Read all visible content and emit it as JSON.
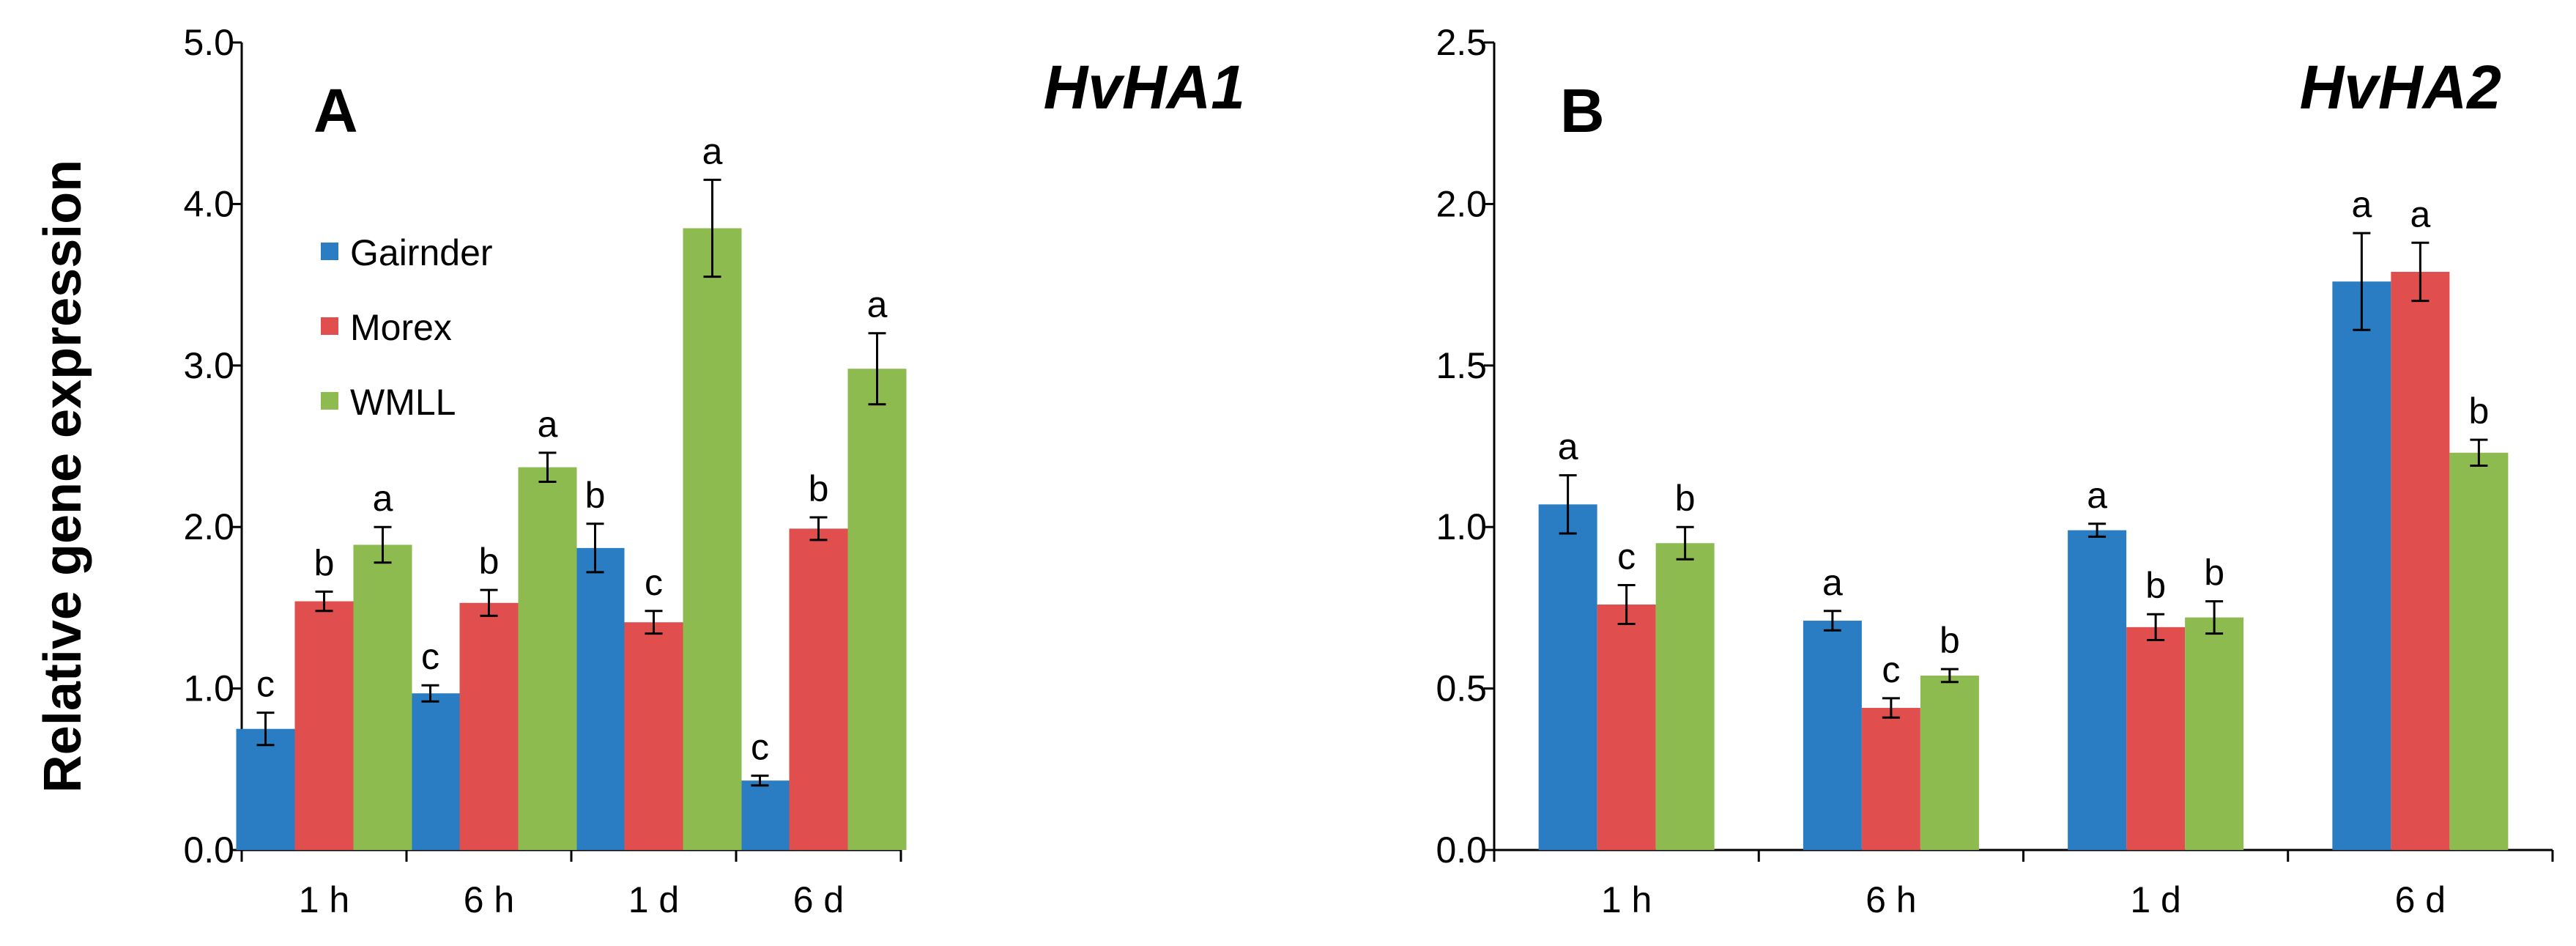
{
  "y_axis_label": "Relative gene expression",
  "legend": {
    "items": [
      {
        "name": "Gairnder",
        "color": "#2a7dc2"
      },
      {
        "name": "Morex",
        "color": "#e04e4e"
      },
      {
        "name": "WMLL",
        "color": "#8dbb4f"
      }
    ]
  },
  "chart_data": [
    {
      "type": "bar",
      "panel_label": "A",
      "title": "HvHA1",
      "categories": [
        "1 h",
        "6 h",
        "1 d",
        "6 d"
      ],
      "ylim": [
        0,
        5
      ],
      "yticks": [
        0,
        1,
        2,
        3,
        4,
        5
      ],
      "ytick_labels": [
        "0.0",
        "1.0",
        "2.0",
        "3.0",
        "4.0",
        "5.0"
      ],
      "ylabel": "Relative gene expression",
      "series": [
        {
          "name": "Gairnder",
          "color": "#2a7dc2",
          "values": [
            0.75,
            0.97,
            1.87,
            0.43
          ],
          "errors": [
            0.1,
            0.05,
            0.15,
            0.03
          ],
          "letters": [
            "c",
            "c",
            "b",
            "c"
          ]
        },
        {
          "name": "Morex",
          "color": "#e04e4e",
          "values": [
            1.54,
            1.53,
            1.41,
            1.99
          ],
          "errors": [
            0.06,
            0.08,
            0.07,
            0.07
          ],
          "letters": [
            "b",
            "b",
            "c",
            "b"
          ]
        },
        {
          "name": "WMLL",
          "color": "#8dbb4f",
          "values": [
            1.89,
            2.37,
            3.85,
            2.98
          ],
          "errors": [
            0.11,
            0.09,
            0.3,
            0.22
          ],
          "letters": [
            "a",
            "a",
            "a",
            "a"
          ]
        }
      ]
    },
    {
      "type": "bar",
      "panel_label": "B",
      "title": "HvHA2",
      "categories": [
        "1 h",
        "6 h",
        "1 d",
        "6 d"
      ],
      "ylim": [
        0,
        2.5
      ],
      "yticks": [
        0,
        0.5,
        1,
        1.5,
        2,
        2.5
      ],
      "ytick_labels": [
        "0.0",
        "0.5",
        "1.0",
        "1.5",
        "2.0",
        "2.5"
      ],
      "ylabel": "",
      "series": [
        {
          "name": "Gairnder",
          "color": "#2a7dc2",
          "values": [
            1.07,
            0.71,
            0.99,
            1.76
          ],
          "errors": [
            0.09,
            0.03,
            0.02,
            0.15
          ],
          "letters": [
            "a",
            "a",
            "a",
            "a"
          ]
        },
        {
          "name": "Morex",
          "color": "#e04e4e",
          "values": [
            0.76,
            0.44,
            0.69,
            1.79
          ],
          "errors": [
            0.06,
            0.03,
            0.04,
            0.09
          ],
          "letters": [
            "c",
            "c",
            "b",
            "a"
          ]
        },
        {
          "name": "WMLL",
          "color": "#8dbb4f",
          "values": [
            0.95,
            0.54,
            0.72,
            1.23
          ],
          "errors": [
            0.05,
            0.02,
            0.05,
            0.04
          ],
          "letters": [
            "b",
            "b",
            "b",
            "b"
          ]
        }
      ]
    }
  ]
}
